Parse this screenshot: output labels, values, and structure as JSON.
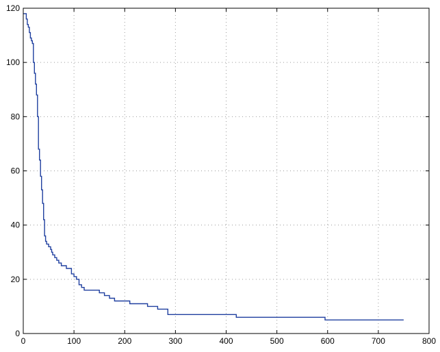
{
  "chart_data": {
    "type": "line",
    "title": "",
    "xlabel": "",
    "ylabel": "",
    "xlim": [
      0,
      800
    ],
    "ylim": [
      0,
      120
    ],
    "xticks": [
      0,
      100,
      200,
      300,
      400,
      500,
      600,
      700,
      800
    ],
    "yticks": [
      0,
      20,
      40,
      60,
      80,
      100,
      120
    ],
    "grid": true,
    "step": true,
    "line_color": "#1f3f9f",
    "series": [
      {
        "x": [
          0,
          4,
          6,
          8,
          10,
          12,
          14,
          16,
          18,
          20,
          22,
          24,
          26,
          28,
          30,
          32,
          34,
          36,
          38,
          40,
          42,
          44,
          46,
          48,
          50,
          52,
          54,
          56,
          58,
          60,
          62,
          64,
          66,
          68,
          70,
          75,
          80,
          85,
          90,
          95,
          100,
          105,
          110,
          115,
          120,
          125,
          130,
          150,
          160,
          170,
          180,
          200,
          210,
          230,
          245,
          265,
          280,
          285,
          420,
          595,
          750
        ],
        "y": [
          118,
          118,
          116,
          114,
          113,
          111,
          109,
          108,
          107,
          100,
          96,
          92,
          88,
          80,
          68,
          64,
          58,
          53,
          48,
          42,
          36,
          34,
          33,
          33,
          32,
          32,
          31,
          30,
          29,
          29,
          28,
          28,
          27,
          27,
          26,
          25,
          25,
          24,
          24,
          22,
          21,
          20,
          18,
          17,
          16,
          16,
          16,
          15,
          14,
          13,
          12,
          12,
          11,
          11,
          10,
          9,
          9,
          7,
          6,
          5,
          5
        ]
      }
    ]
  }
}
